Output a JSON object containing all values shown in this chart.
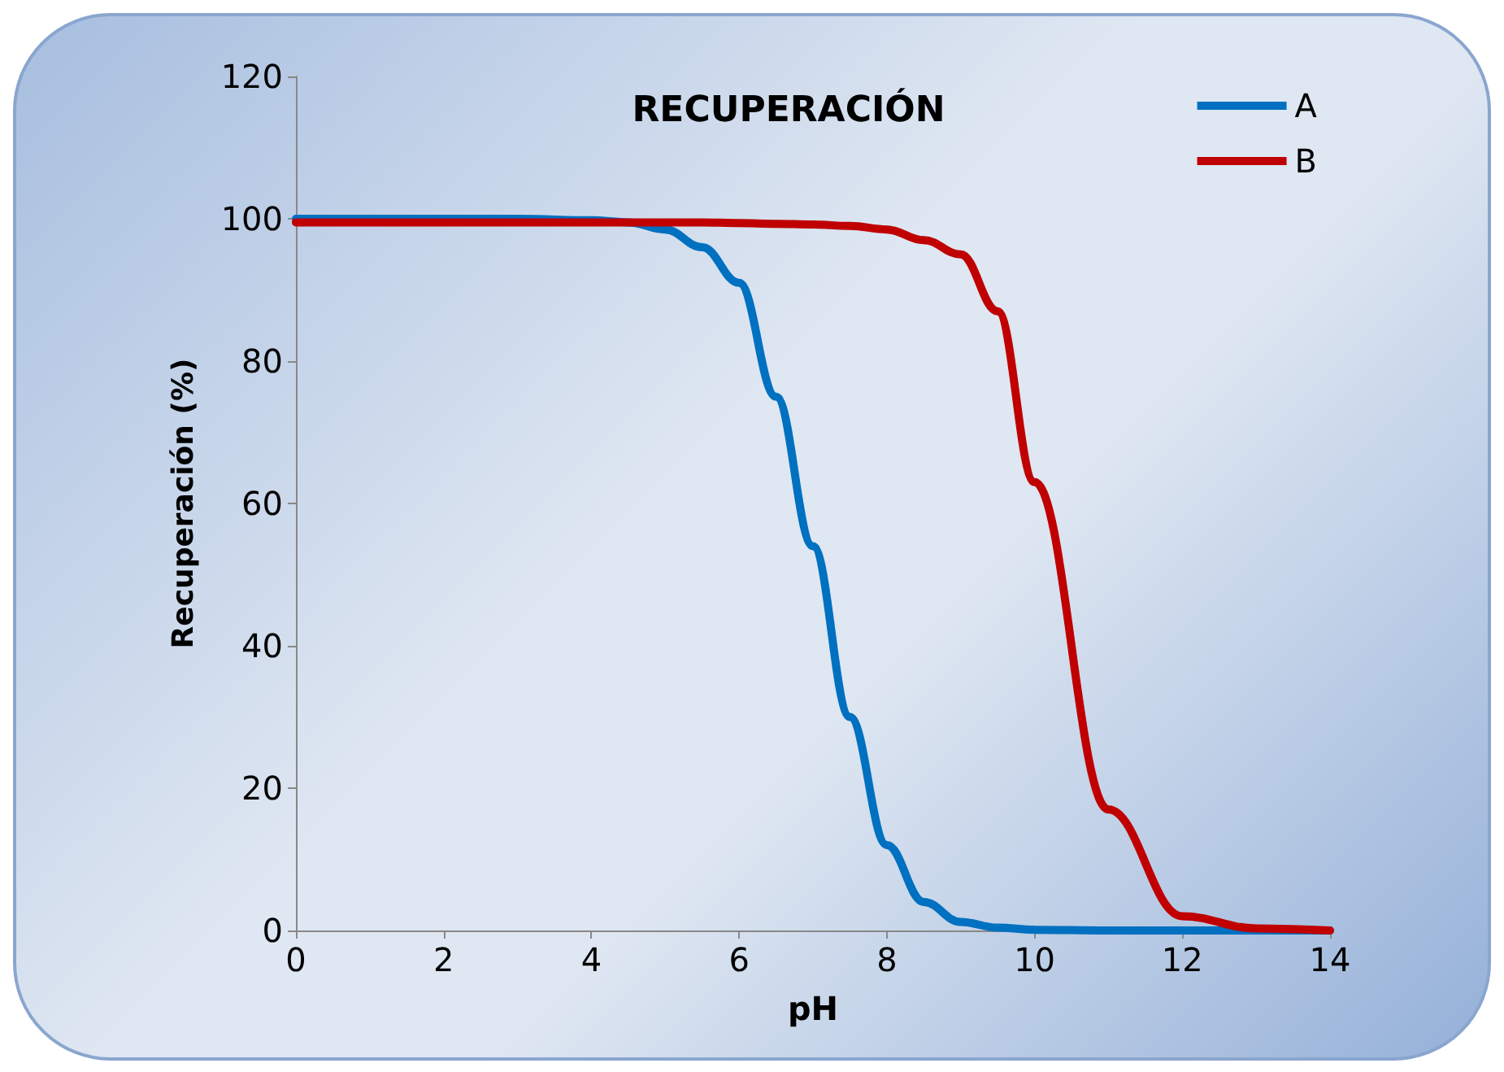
{
  "chart_data": {
    "type": "line",
    "title": "RECUPERACIÓN",
    "xlabel": "pH",
    "ylabel": "Recuperación (%)",
    "x": [
      0,
      1,
      2,
      3,
      4,
      4.5,
      5,
      5.5,
      6,
      6.5,
      7,
      7.5,
      8,
      8.5,
      9,
      9.5,
      10,
      11,
      12,
      13,
      14
    ],
    "series": [
      {
        "name": "A",
        "color": "#0070c0",
        "values": [
          100,
          100,
          100,
          100,
          99.8,
          99.5,
          98.5,
          96,
          91,
          75,
          54,
          30,
          12,
          4,
          1.2,
          0.4,
          0.1,
          0,
          0,
          0,
          0
        ]
      },
      {
        "name": "B",
        "color": "#c00000",
        "values": [
          99.5,
          99.5,
          99.5,
          99.5,
          99.5,
          99.5,
          99.5,
          99.5,
          99.4,
          99.3,
          99.2,
          99,
          98.5,
          97,
          95,
          87,
          63,
          17,
          2,
          0.3,
          0
        ]
      }
    ],
    "xlim": [
      0,
      14
    ],
    "xticks": [
      0,
      2,
      4,
      6,
      8,
      10,
      12,
      14
    ],
    "ylim": [
      0,
      120
    ],
    "yticks": [
      0,
      20,
      40,
      60,
      80,
      100,
      120
    ],
    "grid": false,
    "legend": "top right",
    "marker": "none",
    "line_style": "solid"
  }
}
